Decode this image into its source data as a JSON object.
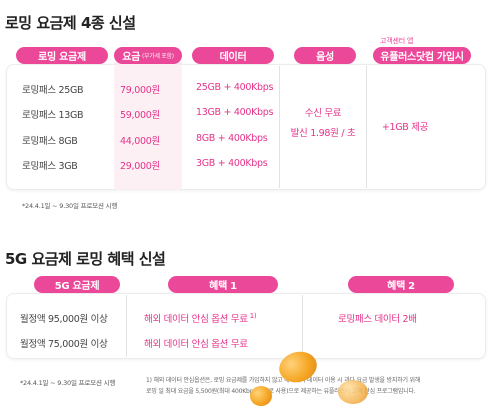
{
  "section1": {
    "title": "로밍 요금제 4종 신설",
    "headers": {
      "plan": "로밍 요금제",
      "price": "요금",
      "price_note": "(부가세 포함)",
      "data": "데이터",
      "voice": "음성",
      "member": "유플러스닷컴 가입시",
      "member_tip": "고객센터 앱"
    },
    "rows": [
      {
        "plan": "로밍패스 25GB",
        "price": "79,000원",
        "data": "25GB + 400Kbps"
      },
      {
        "plan": "로밍패스 13GB",
        "price": "59,000원",
        "data": "13GB + 400Kbps"
      },
      {
        "plan": "로밍패스 8GB",
        "price": "44,000원",
        "data": "8GB + 400Kbps"
      },
      {
        "plan": "로밍패스 3GB",
        "price": "29,000원",
        "data": "3GB + 400Kbps"
      }
    ],
    "voice_line1": "수신 무료",
    "voice_line2": "발신 1.98원 / 초",
    "member_benefit": "+1GB 제공",
    "footnote": "*24.4.1일 ~ 9.30일 프로모션 시행"
  },
  "section2": {
    "title": "5G 요금제 로밍 혜택 신설",
    "headers": {
      "plan": "5G 요금제",
      "benefit1": "혜택 1",
      "benefit2": "혜택 2"
    },
    "rows": [
      {
        "plan": "월정액 95,000원 이상",
        "benefit1": "해외 데이터 안심 옵션 무료",
        "benefit2": "로밍패스 데이터 2배"
      },
      {
        "plan": "월정액 75,000원 이상",
        "benefit1": "해외 데이터 안심 옵션 무료",
        "benefit2": ""
      }
    ],
    "benefit1_sup": "1)",
    "footnote": "*24.4.1일 ~ 9.30일 프로모션 시행",
    "note_line1": "1) 해외 데이터 안심옵션은, 로밍 요금제를 가입하지 않고 해외에서 데이터 이용 시 과다 요금 발생을 방지하기 위해",
    "note_line2": "로밍 일 최대 요금을 5,500원(최대 400Kbps 속도로 사용)으로 제공하는 유플러스의 고객 안심 프로그램입니다."
  },
  "colors": {
    "accent": "#ec4899",
    "highlight": "#fdeef4",
    "coin": "#f5a623"
  }
}
